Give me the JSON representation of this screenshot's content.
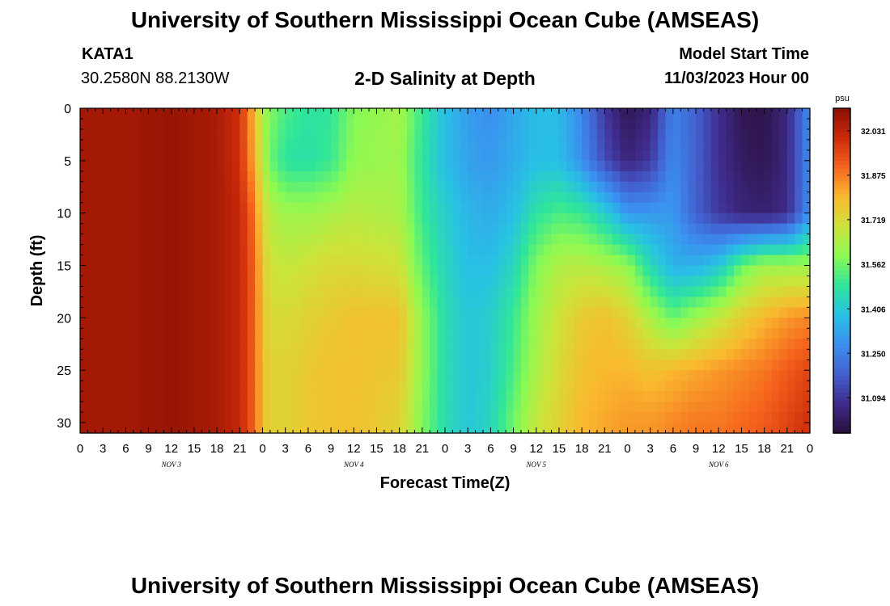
{
  "title": "University of Southern Mississippi Ocean Cube (AMSEAS)",
  "footer_title": "University of Southern Mississippi Ocean Cube (AMSEAS)",
  "station": {
    "name": "KATA1",
    "coords": "30.2580N  88.2130W"
  },
  "subtitle": "2-D Salinity at Depth",
  "model_start": {
    "label": "Model Start Time",
    "value": "11/03/2023 Hour 00"
  },
  "chart_data": {
    "type": "heatmap",
    "title": "2-D Salinity at Depth",
    "xlabel": "Forecast Time(Z)",
    "ylabel": "Depth (ft)",
    "xlim": [
      0,
      96
    ],
    "ylim": [
      31,
      0
    ],
    "x_tick_labels": [
      "0",
      "3",
      "6",
      "9",
      "12",
      "15",
      "18",
      "21",
      "0",
      "3",
      "6",
      "9",
      "12",
      "15",
      "18",
      "21",
      "0",
      "3",
      "6",
      "9",
      "12",
      "15",
      "18",
      "21",
      "0",
      "3",
      "6",
      "9",
      "12",
      "15",
      "18",
      "21",
      "0"
    ],
    "x_tick_hours": [
      0,
      3,
      6,
      9,
      12,
      15,
      18,
      21,
      24,
      27,
      30,
      33,
      36,
      39,
      42,
      45,
      48,
      51,
      54,
      57,
      60,
      63,
      66,
      69,
      72,
      75,
      78,
      81,
      84,
      87,
      90,
      93,
      96
    ],
    "day_labels": [
      {
        "text": "NOV 3",
        "hour": 12
      },
      {
        "text": "NOV 4",
        "hour": 36
      },
      {
        "text": "NOV 5",
        "hour": 60
      },
      {
        "text": "NOV 6",
        "hour": 84
      }
    ],
    "y_tick_labels": [
      "0",
      "5",
      "10",
      "15",
      "20",
      "25",
      "30"
    ],
    "y_tick_values": [
      0,
      5,
      10,
      15,
      20,
      25,
      30
    ],
    "colorbar": {
      "unit": "psu",
      "range": [
        30.97,
        32.11
      ],
      "tick_labels": [
        "32.031",
        "31.875",
        "31.719",
        "31.562",
        "31.406",
        "31.250",
        "31.094"
      ],
      "tick_values": [
        32.031,
        31.875,
        31.719,
        31.562,
        31.406,
        31.25,
        31.094
      ],
      "colors": [
        "#2a0f3b",
        "#3f2b8c",
        "#4360cf",
        "#3b8ff0",
        "#28c1e4",
        "#2ee59b",
        "#8cfa52",
        "#cde33a",
        "#f9b92f",
        "#f6651d",
        "#cc2a0a",
        "#8a0f04"
      ]
    },
    "salinity_breakpoints_hours": [
      0,
      6,
      12,
      18,
      21,
      23,
      24,
      25,
      27,
      30,
      33,
      36,
      42,
      45,
      48,
      51,
      54,
      57,
      60,
      63,
      66,
      69,
      72,
      75,
      78,
      81,
      84,
      87,
      90,
      93,
      96
    ],
    "salinity_depths_ft": [
      0,
      5,
      10,
      15,
      20,
      25,
      30
    ],
    "salinity_psu": [
      [
        32.07,
        32.07,
        32.09,
        32.06,
        32.0,
        31.78,
        31.64,
        31.58,
        31.52,
        31.48,
        31.49,
        31.58,
        31.63,
        31.5,
        31.38,
        31.31,
        31.28,
        31.33,
        31.38,
        31.37,
        31.26,
        31.1,
        31.0,
        31.05,
        31.25,
        31.18,
        31.08,
        31.0,
        30.99,
        31.06,
        31.28
      ],
      [
        32.07,
        32.07,
        32.09,
        32.06,
        32.0,
        31.8,
        31.66,
        31.56,
        31.48,
        31.47,
        31.5,
        31.6,
        31.62,
        31.48,
        31.38,
        31.32,
        31.3,
        31.34,
        31.38,
        31.38,
        31.28,
        31.14,
        31.05,
        31.1,
        31.27,
        31.18,
        31.08,
        31.02,
        31.0,
        31.06,
        31.28
      ],
      [
        32.07,
        32.07,
        32.09,
        32.06,
        32.02,
        31.88,
        31.73,
        31.66,
        31.62,
        31.62,
        31.64,
        31.66,
        31.64,
        31.5,
        31.42,
        31.36,
        31.34,
        31.38,
        31.48,
        31.52,
        31.5,
        31.42,
        31.3,
        31.3,
        31.3,
        31.18,
        31.1,
        31.05,
        31.04,
        31.07,
        31.28
      ],
      [
        32.07,
        32.07,
        32.09,
        32.06,
        32.02,
        31.9,
        31.76,
        31.7,
        31.68,
        31.7,
        31.72,
        31.72,
        31.7,
        31.54,
        31.44,
        31.38,
        31.38,
        31.44,
        31.58,
        31.65,
        31.66,
        31.64,
        31.6,
        31.45,
        31.35,
        31.35,
        31.4,
        31.55,
        31.62,
        31.62,
        31.62
      ],
      [
        32.07,
        32.07,
        32.09,
        32.06,
        32.02,
        31.9,
        31.78,
        31.72,
        31.72,
        31.74,
        31.76,
        31.78,
        31.78,
        31.6,
        31.46,
        31.4,
        31.42,
        31.5,
        31.62,
        31.7,
        31.76,
        31.78,
        31.74,
        31.64,
        31.55,
        31.62,
        31.68,
        31.75,
        31.8,
        31.84,
        31.86
      ],
      [
        32.07,
        32.07,
        32.09,
        32.06,
        32.02,
        31.9,
        31.78,
        31.74,
        31.74,
        31.76,
        31.78,
        31.78,
        31.76,
        31.6,
        31.46,
        31.4,
        31.42,
        31.52,
        31.64,
        31.72,
        31.78,
        31.8,
        31.8,
        31.78,
        31.8,
        31.82,
        31.84,
        31.86,
        31.88,
        31.92,
        31.96
      ],
      [
        32.07,
        32.07,
        32.09,
        32.06,
        32.02,
        31.9,
        31.78,
        31.74,
        31.74,
        31.76,
        31.78,
        31.78,
        31.74,
        31.58,
        31.46,
        31.4,
        31.44,
        31.56,
        31.68,
        31.74,
        31.8,
        31.82,
        31.84,
        31.84,
        31.86,
        31.88,
        31.88,
        31.9,
        31.92,
        31.96,
        32.0
      ]
    ]
  }
}
